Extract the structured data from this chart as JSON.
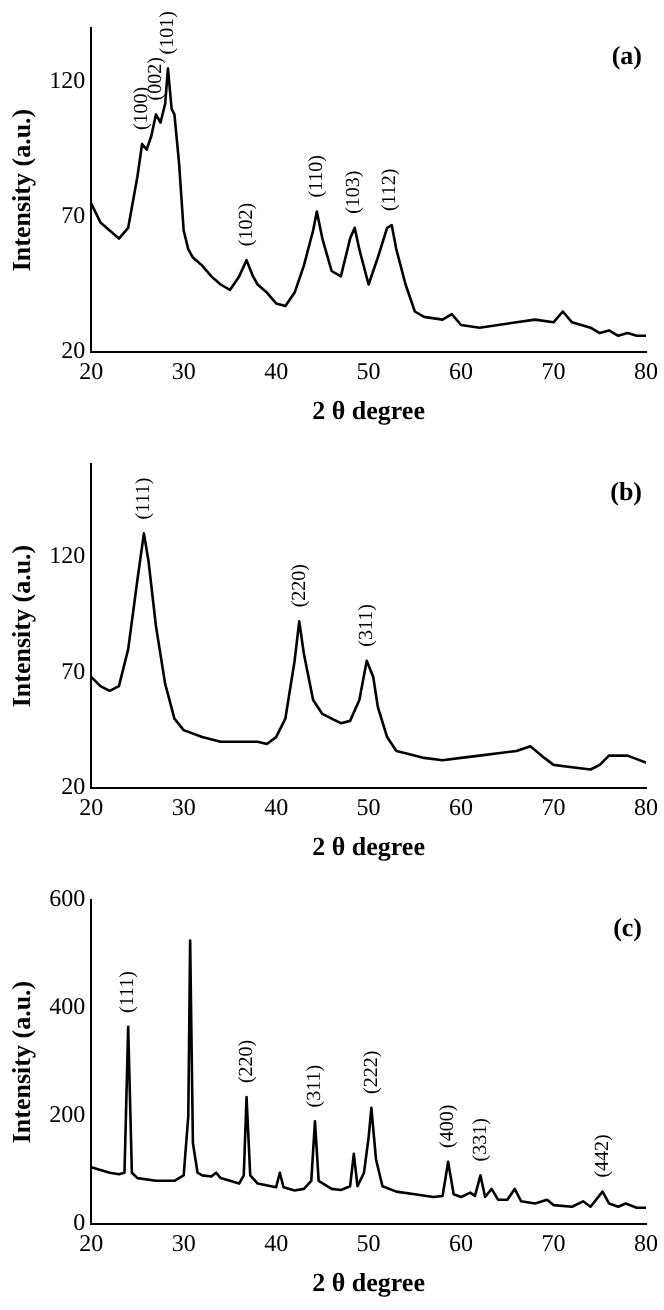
{
  "chart_data": [
    {
      "type": "line",
      "xlabel": "2 θ degree",
      "ylabel": "Intensity (a.u.)",
      "xlim": [
        20,
        80
      ],
      "xticks": [
        20,
        30,
        40,
        50,
        60,
        70,
        80
      ],
      "ylim": [
        20,
        140
      ],
      "yticks": [
        20,
        70,
        120
      ],
      "grid": false,
      "legend": false,
      "marker": "none",
      "line_style": "solid",
      "annotations": [
        "(a)",
        {
          "text": "(100)",
          "x": 25.5,
          "y": 97
        },
        {
          "text": "(002)",
          "x": 27,
          "y": 108
        },
        {
          "text": "(101)",
          "x": 28.3,
          "y": 125
        },
        {
          "text": "(102)",
          "x": 36.8,
          "y": 54
        },
        {
          "text": "(110)",
          "x": 44.4,
          "y": 72
        },
        {
          "text": "(103)",
          "x": 48.4,
          "y": 66
        },
        {
          "text": "(112)",
          "x": 52.3,
          "y": 67
        }
      ],
      "series": [
        {
          "color": "#000000",
          "x": [
            20,
            21,
            22,
            23,
            24,
            25,
            25.5,
            26,
            26.5,
            27,
            27.5,
            28,
            28.3,
            28.7,
            29,
            29.5,
            30,
            30.5,
            31,
            32,
            33,
            34,
            35,
            36,
            36.8,
            37.5,
            38,
            39,
            40,
            41,
            42,
            43,
            44,
            44.4,
            45,
            46,
            47,
            48,
            48.5,
            49,
            50,
            51,
            52,
            52.5,
            53,
            54,
            55,
            56,
            58,
            59,
            60,
            62,
            64,
            66,
            68,
            70,
            71,
            72,
            74,
            75,
            76,
            77,
            78,
            79,
            80
          ],
          "values": [
            75,
            68,
            65,
            62,
            66,
            85,
            97,
            95,
            100,
            108,
            105,
            112,
            125,
            110,
            108,
            90,
            65,
            58,
            55,
            52,
            48,
            45,
            43,
            48,
            54,
            48,
            45,
            42,
            38,
            37,
            42,
            52,
            65,
            72,
            62,
            50,
            48,
            62,
            66,
            58,
            45,
            55,
            66,
            67,
            58,
            45,
            35,
            33,
            32,
            34,
            30,
            29,
            30,
            31,
            32,
            31,
            35,
            31,
            29,
            27,
            28,
            26,
            27,
            26,
            26
          ]
        }
      ]
    },
    {
      "type": "line",
      "xlabel": "2 θ degree",
      "ylabel": "Intensity (a.u.)",
      "xlim": [
        20,
        80
      ],
      "xticks": [
        20,
        30,
        40,
        50,
        60,
        70,
        80
      ],
      "ylim": [
        20,
        160
      ],
      "yticks": [
        20,
        70,
        120
      ],
      "grid": false,
      "legend": false,
      "marker": "none",
      "line_style": "solid",
      "annotations": [
        "(b)",
        {
          "text": "(111)",
          "x": 25.7,
          "y": 130
        },
        {
          "text": "(220)",
          "x": 42.5,
          "y": 92
        },
        {
          "text": "(311)",
          "x": 49.8,
          "y": 75
        }
      ],
      "series": [
        {
          "color": "#000000",
          "x": [
            20,
            21,
            22,
            23,
            24,
            25,
            25.7,
            26.2,
            27,
            28,
            29,
            30,
            32,
            34,
            36,
            38,
            39,
            40,
            41,
            42,
            42.5,
            43,
            44,
            45,
            46,
            47,
            48,
            49,
            49.8,
            50.5,
            51,
            52,
            53,
            54,
            56,
            58,
            60,
            62,
            64,
            66,
            67.5,
            69,
            70,
            72,
            74,
            75,
            76,
            78,
            80
          ],
          "values": [
            68,
            64,
            62,
            64,
            80,
            110,
            130,
            118,
            90,
            65,
            50,
            45,
            42,
            40,
            40,
            40,
            39,
            42,
            50,
            75,
            92,
            78,
            58,
            52,
            50,
            48,
            49,
            58,
            75,
            68,
            55,
            42,
            36,
            35,
            33,
            32,
            33,
            34,
            35,
            36,
            38,
            33,
            30,
            29,
            28,
            30,
            34,
            34,
            31
          ]
        }
      ]
    },
    {
      "type": "line",
      "xlabel": "2 θ degree",
      "ylabel": "Intensity (a.u.)",
      "xlim": [
        20,
        80
      ],
      "xticks": [
        20,
        30,
        40,
        50,
        60,
        70,
        80
      ],
      "ylim": [
        0,
        600
      ],
      "yticks": [
        0,
        200,
        400,
        600
      ],
      "grid": false,
      "legend": false,
      "marker": "none",
      "line_style": "solid",
      "annotations": [
        "(c)",
        {
          "text": "(111)",
          "x": 24,
          "y": 365
        },
        {
          "text": "(220)",
          "x": 36.8,
          "y": 235
        },
        {
          "text": "(311)",
          "x": 44.2,
          "y": 190
        },
        {
          "text": "(222)",
          "x": 50.3,
          "y": 215
        },
        {
          "text": "(400)",
          "x": 58.6,
          "y": 115
        },
        {
          "text": "(331)",
          "x": 62.1,
          "y": 90
        },
        {
          "text": "(442)",
          "x": 75.3,
          "y": 60
        }
      ],
      "series": [
        {
          "color": "#000000",
          "x": [
            20,
            21,
            22,
            23,
            23.6,
            24,
            24.4,
            25,
            27,
            29,
            30,
            30.5,
            30.7,
            31,
            31.5,
            32,
            33,
            33.5,
            34,
            36,
            36.5,
            36.8,
            37.2,
            38,
            40,
            40.4,
            40.8,
            42,
            43,
            43.8,
            44.2,
            44.6,
            46,
            47,
            48,
            48.4,
            48.8,
            49.5,
            50,
            50.3,
            50.8,
            51.5,
            53,
            55,
            57,
            58,
            58.6,
            59.2,
            60,
            61,
            61.5,
            62.1,
            62.6,
            63.3,
            64,
            65,
            65.8,
            66.5,
            68,
            69.3,
            70,
            72,
            73.2,
            74,
            75.3,
            76,
            77,
            77.8,
            79,
            80
          ],
          "values": [
            105,
            100,
            95,
            92,
            95,
            365,
            95,
            85,
            80,
            80,
            90,
            200,
            525,
            150,
            95,
            90,
            88,
            95,
            85,
            75,
            90,
            235,
            90,
            75,
            68,
            95,
            68,
            62,
            65,
            80,
            190,
            80,
            65,
            63,
            70,
            130,
            70,
            95,
            160,
            215,
            120,
            70,
            60,
            55,
            50,
            52,
            115,
            55,
            50,
            58,
            52,
            90,
            50,
            65,
            45,
            45,
            65,
            42,
            38,
            45,
            35,
            32,
            42,
            32,
            60,
            38,
            32,
            38,
            30,
            30
          ]
        }
      ]
    }
  ]
}
